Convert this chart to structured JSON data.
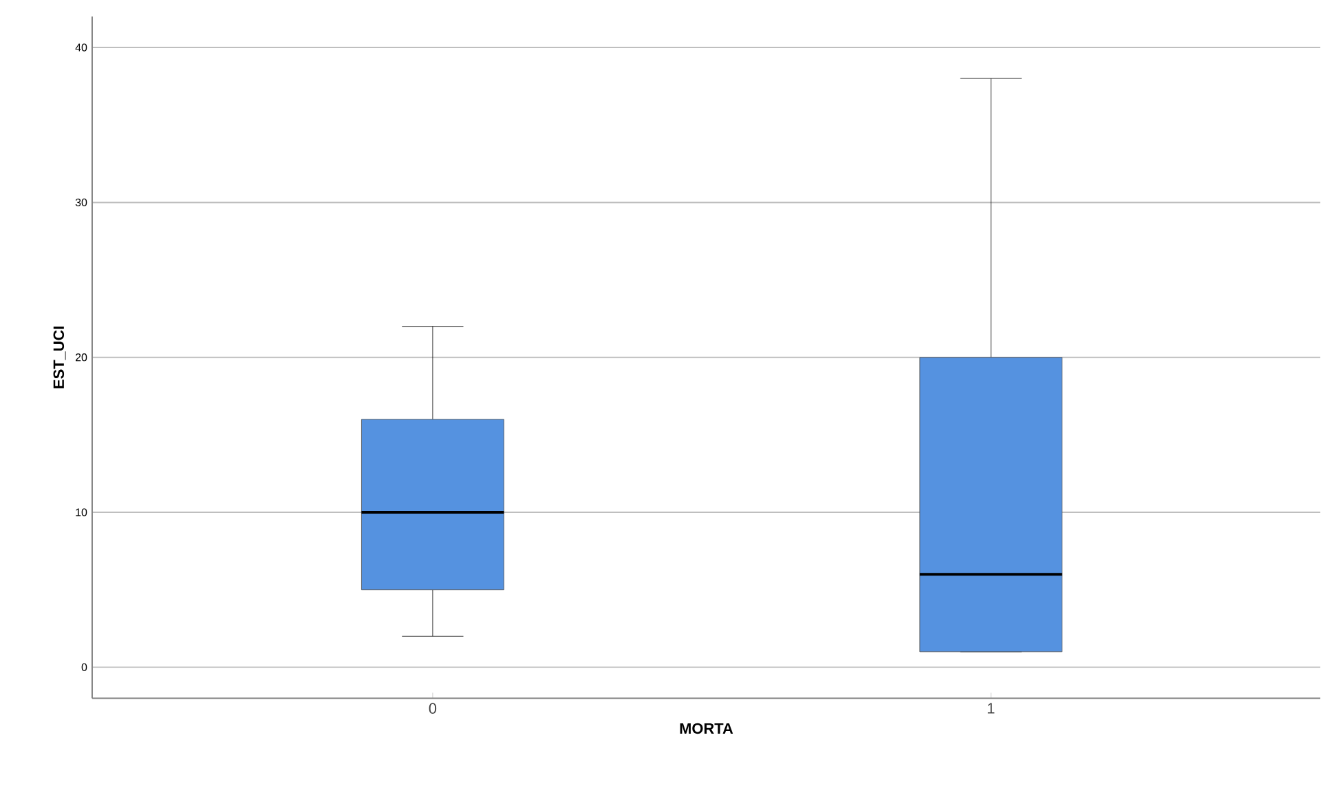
{
  "chart_data": {
    "type": "box",
    "xlabel": "MORTA",
    "ylabel": "EST_UCI",
    "categories": [
      "0",
      "1"
    ],
    "boxes": [
      {
        "low": 2,
        "q1": 5,
        "median": 10,
        "q3": 16,
        "high": 22
      },
      {
        "low": 1,
        "q1": 1,
        "median": 6,
        "q3": 20,
        "high": 38
      }
    ],
    "color": "#5592e0",
    "ylim": [
      -2,
      42
    ],
    "yticks": [
      0,
      10,
      20,
      30,
      40
    ],
    "grid": "y"
  }
}
